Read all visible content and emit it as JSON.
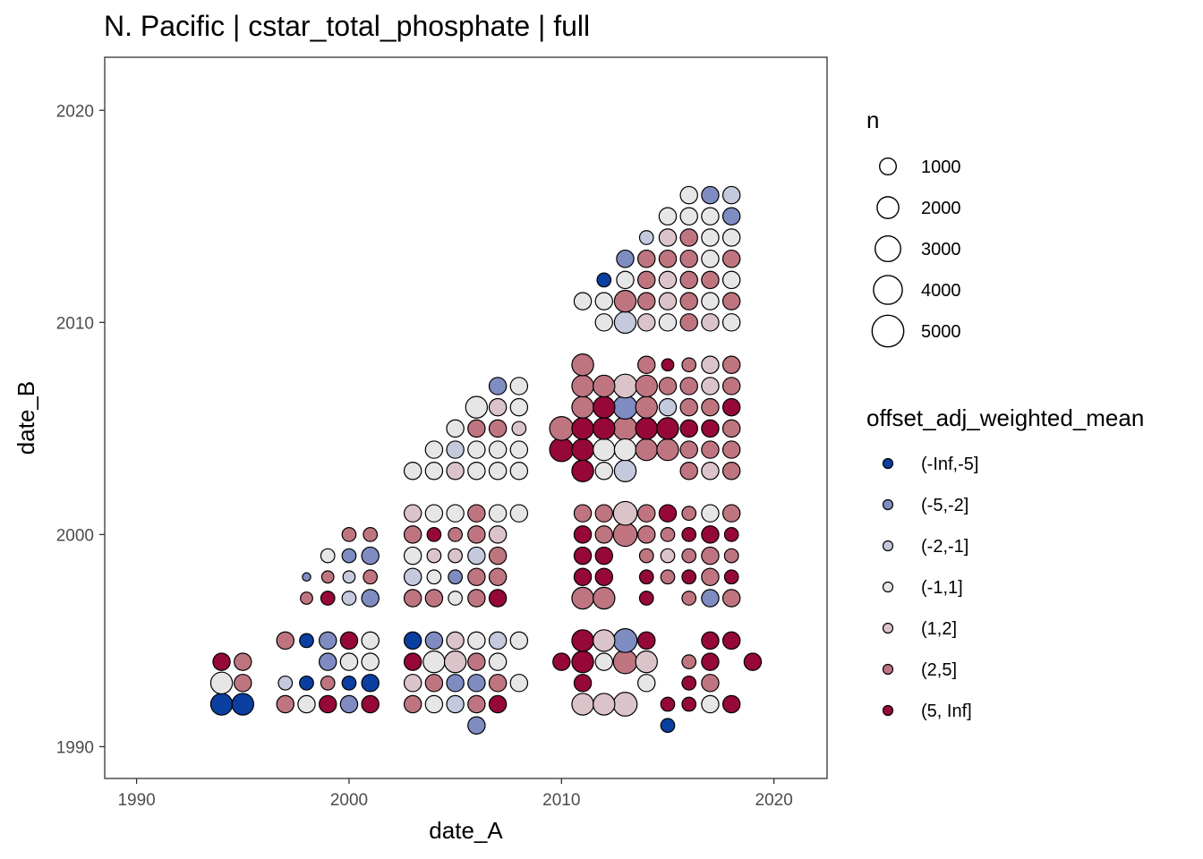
{
  "chart_data": {
    "type": "scatter",
    "title": "N. Pacific | cstar_total_phosphate | full",
    "xlabel": "date_A",
    "ylabel": "date_B",
    "xlim": [
      1988.5,
      2022.5
    ],
    "ylim": [
      1988.5,
      2022.5
    ],
    "xticks": [
      1990,
      2000,
      2010,
      2020
    ],
    "yticks": [
      1990,
      2000,
      2010,
      2020
    ],
    "grid": false,
    "size_legend": {
      "title": "n",
      "entries": [
        {
          "label": "1000",
          "value": 1000
        },
        {
          "label": "2000",
          "value": 2000
        },
        {
          "label": "3000",
          "value": 3000
        },
        {
          "label": "4000",
          "value": 4000
        },
        {
          "label": "5000",
          "value": 5000
        }
      ]
    },
    "color_legend": {
      "title": "offset_adj_weighted_mean",
      "entries": [
        {
          "label": "(-Inf,-5]",
          "color": "#0a3ea0"
        },
        {
          "label": "(-5,-2]",
          "color": "#7f8cc2"
        },
        {
          "label": "(-2,-1]",
          "color": "#c5c9de"
        },
        {
          "label": "(-1,1]",
          "color": "#e6e6e6"
        },
        {
          "label": "(1,2]",
          "color": "#dbc3ca"
        },
        {
          "label": "(2,5]",
          "color": "#bf7580"
        },
        {
          "label": "(5, Inf]",
          "color": "#950838"
        }
      ]
    },
    "points": [
      [
        1994,
        1992,
        0,
        2000
      ],
      [
        1994,
        1993,
        3,
        2000
      ],
      [
        1994,
        1994,
        6,
        1100
      ],
      [
        1995,
        1992,
        0,
        2000
      ],
      [
        1995,
        1993,
        5,
        1100
      ],
      [
        1995,
        1994,
        5,
        1100
      ],
      [
        1997,
        1992,
        5,
        1100
      ],
      [
        1997,
        1993,
        2,
        600
      ],
      [
        1997,
        1995,
        5,
        1100
      ],
      [
        1998,
        1992,
        3,
        1100
      ],
      [
        1998,
        1993,
        0,
        600
      ],
      [
        1998,
        1995,
        0,
        600
      ],
      [
        1998,
        1997,
        5,
        400
      ],
      [
        1998,
        1998,
        1,
        100
      ],
      [
        1999,
        1992,
        6,
        1100
      ],
      [
        1999,
        1993,
        5,
        600
      ],
      [
        1999,
        1994,
        1,
        1100
      ],
      [
        1999,
        1995,
        1,
        1100
      ],
      [
        1999,
        1997,
        6,
        600
      ],
      [
        1999,
        1998,
        5,
        400
      ],
      [
        1999,
        1999,
        3,
        600
      ],
      [
        2000,
        1992,
        1,
        1100
      ],
      [
        2000,
        1993,
        0,
        600
      ],
      [
        2000,
        1994,
        3,
        1100
      ],
      [
        2000,
        1995,
        6,
        1100
      ],
      [
        2000,
        1997,
        2,
        600
      ],
      [
        2000,
        1998,
        2,
        400
      ],
      [
        2000,
        1999,
        1,
        600
      ],
      [
        2000,
        2000,
        5,
        600
      ],
      [
        2001,
        1992,
        6,
        1100
      ],
      [
        2001,
        1993,
        0,
        1100
      ],
      [
        2001,
        1994,
        3,
        1100
      ],
      [
        2001,
        1995,
        3,
        1100
      ],
      [
        2001,
        1997,
        1,
        1100
      ],
      [
        2001,
        1998,
        5,
        600
      ],
      [
        2001,
        1999,
        1,
        1100
      ],
      [
        2001,
        2000,
        5,
        600
      ],
      [
        2003,
        1992,
        5,
        1100
      ],
      [
        2003,
        1993,
        4,
        1100
      ],
      [
        2003,
        1994,
        6,
        1100
      ],
      [
        2003,
        1995,
        0,
        1100
      ],
      [
        2003,
        1997,
        5,
        1100
      ],
      [
        2003,
        1998,
        2,
        1100
      ],
      [
        2003,
        1999,
        3,
        1100
      ],
      [
        2003,
        2000,
        5,
        1100
      ],
      [
        2003,
        2001,
        4,
        1100
      ],
      [
        2003,
        2003,
        3,
        1100
      ],
      [
        2004,
        1992,
        3,
        1100
      ],
      [
        2004,
        1993,
        5,
        1100
      ],
      [
        2004,
        1994,
        3,
        2000
      ],
      [
        2004,
        1995,
        1,
        1100
      ],
      [
        2004,
        1997,
        5,
        1100
      ],
      [
        2004,
        1998,
        3,
        600
      ],
      [
        2004,
        1999,
        4,
        600
      ],
      [
        2004,
        2000,
        6,
        600
      ],
      [
        2004,
        2001,
        3,
        1100
      ],
      [
        2004,
        2003,
        3,
        1100
      ],
      [
        2004,
        2004,
        3,
        1100
      ],
      [
        2005,
        1992,
        2,
        1100
      ],
      [
        2005,
        1993,
        1,
        1100
      ],
      [
        2005,
        1994,
        4,
        2000
      ],
      [
        2005,
        1995,
        4,
        1100
      ],
      [
        2005,
        1997,
        3,
        600
      ],
      [
        2005,
        1998,
        1,
        600
      ],
      [
        2005,
        1999,
        4,
        600
      ],
      [
        2005,
        2000,
        5,
        600
      ],
      [
        2005,
        2001,
        3,
        1100
      ],
      [
        2005,
        2003,
        4,
        1100
      ],
      [
        2005,
        2004,
        2,
        1100
      ],
      [
        2005,
        2005,
        3,
        1100
      ],
      [
        2006,
        1991,
        1,
        1100
      ],
      [
        2006,
        1992,
        5,
        1100
      ],
      [
        2006,
        1993,
        1,
        1100
      ],
      [
        2006,
        1994,
        5,
        1100
      ],
      [
        2006,
        1995,
        3,
        1100
      ],
      [
        2006,
        1997,
        5,
        1100
      ],
      [
        2006,
        1998,
        5,
        1100
      ],
      [
        2006,
        1999,
        2,
        1100
      ],
      [
        2006,
        2000,
        5,
        1100
      ],
      [
        2006,
        2001,
        5,
        1100
      ],
      [
        2006,
        2003,
        3,
        1100
      ],
      [
        2006,
        2004,
        3,
        1100
      ],
      [
        2006,
        2005,
        5,
        1100
      ],
      [
        2006,
        2006,
        3,
        2000
      ],
      [
        2007,
        1992,
        6,
        1100
      ],
      [
        2007,
        1993,
        5,
        1100
      ],
      [
        2007,
        1994,
        3,
        1100
      ],
      [
        2007,
        1995,
        2,
        1100
      ],
      [
        2007,
        1997,
        6,
        1100
      ],
      [
        2007,
        1998,
        5,
        1100
      ],
      [
        2007,
        1999,
        5,
        1100
      ],
      [
        2007,
        2000,
        4,
        1100
      ],
      [
        2007,
        2001,
        3,
        1100
      ],
      [
        2007,
        2003,
        3,
        1100
      ],
      [
        2007,
        2004,
        3,
        1100
      ],
      [
        2007,
        2005,
        5,
        1100
      ],
      [
        2007,
        2006,
        4,
        1100
      ],
      [
        2007,
        2007,
        1,
        1100
      ],
      [
        2008,
        1993,
        3,
        1100
      ],
      [
        2008,
        1995,
        3,
        1100
      ],
      [
        2008,
        2001,
        3,
        1100
      ],
      [
        2008,
        2003,
        3,
        1100
      ],
      [
        2008,
        2004,
        3,
        1100
      ],
      [
        2008,
        2005,
        4,
        600
      ],
      [
        2008,
        2006,
        3,
        1100
      ],
      [
        2008,
        2007,
        3,
        1100
      ],
      [
        2010,
        1994,
        6,
        1100
      ],
      [
        2010,
        2004,
        6,
        2500
      ],
      [
        2010,
        2005,
        5,
        2500
      ],
      [
        2011,
        1992,
        4,
        2000
      ],
      [
        2011,
        1993,
        6,
        1100
      ],
      [
        2011,
        1994,
        6,
        2000
      ],
      [
        2011,
        1995,
        6,
        2000
      ],
      [
        2011,
        1997,
        5,
        2000
      ],
      [
        2011,
        1998,
        6,
        1100
      ],
      [
        2011,
        1999,
        6,
        1100
      ],
      [
        2011,
        2000,
        6,
        1100
      ],
      [
        2011,
        2001,
        5,
        1100
      ],
      [
        2011,
        2003,
        6,
        2000
      ],
      [
        2011,
        2004,
        6,
        2000
      ],
      [
        2011,
        2005,
        6,
        2000
      ],
      [
        2011,
        2006,
        5,
        2000
      ],
      [
        2011,
        2007,
        5,
        2000
      ],
      [
        2011,
        2008,
        5,
        2000
      ],
      [
        2011,
        2011,
        3,
        1100
      ],
      [
        2012,
        1992,
        4,
        2000
      ],
      [
        2012,
        1994,
        3,
        1100
      ],
      [
        2012,
        1995,
        4,
        2000
      ],
      [
        2012,
        1997,
        5,
        2000
      ],
      [
        2012,
        1998,
        6,
        1100
      ],
      [
        2012,
        1999,
        6,
        1100
      ],
      [
        2012,
        2000,
        5,
        1100
      ],
      [
        2012,
        2001,
        5,
        1100
      ],
      [
        2012,
        2003,
        3,
        1100
      ],
      [
        2012,
        2004,
        3,
        2000
      ],
      [
        2012,
        2005,
        6,
        2000
      ],
      [
        2012,
        2006,
        6,
        2000
      ],
      [
        2012,
        2007,
        5,
        2000
      ],
      [
        2012,
        2010,
        3,
        1100
      ],
      [
        2012,
        2011,
        3,
        1100
      ],
      [
        2012,
        2012,
        0,
        600
      ],
      [
        2013,
        1992,
        4,
        2500
      ],
      [
        2013,
        1994,
        5,
        2500
      ],
      [
        2013,
        1995,
        1,
        2500
      ],
      [
        2013,
        2000,
        5,
        2500
      ],
      [
        2013,
        2001,
        4,
        2500
      ],
      [
        2013,
        2003,
        2,
        2000
      ],
      [
        2013,
        2004,
        3,
        2000
      ],
      [
        2013,
        2005,
        5,
        2500
      ],
      [
        2013,
        2006,
        1,
        2500
      ],
      [
        2013,
        2007,
        4,
        2500
      ],
      [
        2013,
        2010,
        2,
        2000
      ],
      [
        2013,
        2011,
        5,
        2000
      ],
      [
        2013,
        2012,
        3,
        1100
      ],
      [
        2013,
        2013,
        1,
        1100
      ],
      [
        2014,
        1993,
        3,
        1100
      ],
      [
        2014,
        1994,
        4,
        2000
      ],
      [
        2014,
        1995,
        6,
        1100
      ],
      [
        2014,
        1997,
        6,
        600
      ],
      [
        2014,
        1998,
        6,
        600
      ],
      [
        2014,
        1999,
        5,
        600
      ],
      [
        2014,
        2000,
        5,
        1100
      ],
      [
        2014,
        2001,
        5,
        1100
      ],
      [
        2014,
        2004,
        5,
        2000
      ],
      [
        2014,
        2005,
        6,
        2000
      ],
      [
        2014,
        2006,
        5,
        2000
      ],
      [
        2014,
        2007,
        5,
        2000
      ],
      [
        2014,
        2008,
        5,
        1100
      ],
      [
        2014,
        2010,
        4,
        1100
      ],
      [
        2014,
        2011,
        5,
        1100
      ],
      [
        2014,
        2012,
        5,
        1100
      ],
      [
        2014,
        2013,
        5,
        1100
      ],
      [
        2014,
        2014,
        2,
        600
      ],
      [
        2015,
        1991,
        0,
        600
      ],
      [
        2015,
        1992,
        6,
        600
      ],
      [
        2015,
        1998,
        5,
        600
      ],
      [
        2015,
        1999,
        4,
        600
      ],
      [
        2015,
        2000,
        5,
        600
      ],
      [
        2015,
        2001,
        6,
        1100
      ],
      [
        2015,
        2004,
        5,
        2000
      ],
      [
        2015,
        2005,
        6,
        2000
      ],
      [
        2015,
        2006,
        2,
        1100
      ],
      [
        2015,
        2007,
        5,
        1100
      ],
      [
        2015,
        2008,
        6,
        400
      ],
      [
        2015,
        2010,
        3,
        1100
      ],
      [
        2015,
        2011,
        4,
        1100
      ],
      [
        2015,
        2012,
        4,
        1100
      ],
      [
        2015,
        2013,
        5,
        1100
      ],
      [
        2015,
        2014,
        4,
        1100
      ],
      [
        2015,
        2015,
        3,
        1100
      ],
      [
        2016,
        1992,
        6,
        600
      ],
      [
        2016,
        1993,
        6,
        600
      ],
      [
        2016,
        1994,
        5,
        600
      ],
      [
        2016,
        1997,
        5,
        600
      ],
      [
        2016,
        1998,
        6,
        600
      ],
      [
        2016,
        1999,
        5,
        600
      ],
      [
        2016,
        2000,
        6,
        600
      ],
      [
        2016,
        2001,
        5,
        600
      ],
      [
        2016,
        2003,
        5,
        1100
      ],
      [
        2016,
        2004,
        5,
        1100
      ],
      [
        2016,
        2005,
        6,
        1100
      ],
      [
        2016,
        2006,
        5,
        1100
      ],
      [
        2016,
        2007,
        5,
        1100
      ],
      [
        2016,
        2008,
        5,
        600
      ],
      [
        2016,
        2010,
        5,
        1100
      ],
      [
        2016,
        2011,
        5,
        1100
      ],
      [
        2016,
        2012,
        5,
        1100
      ],
      [
        2016,
        2013,
        5,
        1100
      ],
      [
        2016,
        2014,
        5,
        1100
      ],
      [
        2016,
        2015,
        3,
        1100
      ],
      [
        2016,
        2016,
        3,
        1100
      ],
      [
        2017,
        1992,
        3,
        1100
      ],
      [
        2017,
        1993,
        5,
        1100
      ],
      [
        2017,
        1994,
        6,
        1100
      ],
      [
        2017,
        1995,
        6,
        1100
      ],
      [
        2017,
        1997,
        1,
        1100
      ],
      [
        2017,
        1998,
        5,
        1100
      ],
      [
        2017,
        1999,
        5,
        1100
      ],
      [
        2017,
        2000,
        6,
        1100
      ],
      [
        2017,
        2001,
        3,
        1100
      ],
      [
        2017,
        2003,
        4,
        1100
      ],
      [
        2017,
        2004,
        5,
        1100
      ],
      [
        2017,
        2005,
        6,
        1100
      ],
      [
        2017,
        2006,
        5,
        1100
      ],
      [
        2017,
        2007,
        4,
        1100
      ],
      [
        2017,
        2008,
        4,
        1100
      ],
      [
        2017,
        2010,
        4,
        1100
      ],
      [
        2017,
        2011,
        3,
        1100
      ],
      [
        2017,
        2012,
        5,
        1100
      ],
      [
        2017,
        2013,
        3,
        1100
      ],
      [
        2017,
        2014,
        3,
        1100
      ],
      [
        2017,
        2015,
        3,
        1100
      ],
      [
        2017,
        2016,
        1,
        1100
      ],
      [
        2018,
        1992,
        6,
        1100
      ],
      [
        2018,
        1995,
        6,
        1100
      ],
      [
        2018,
        1997,
        5,
        1100
      ],
      [
        2018,
        1998,
        6,
        600
      ],
      [
        2018,
        1999,
        5,
        600
      ],
      [
        2018,
        2000,
        6,
        600
      ],
      [
        2018,
        2001,
        5,
        1100
      ],
      [
        2018,
        2003,
        5,
        1100
      ],
      [
        2018,
        2004,
        5,
        1100
      ],
      [
        2018,
        2005,
        5,
        1100
      ],
      [
        2018,
        2006,
        6,
        1100
      ],
      [
        2018,
        2007,
        5,
        1100
      ],
      [
        2018,
        2008,
        5,
        1100
      ],
      [
        2018,
        2010,
        3,
        1100
      ],
      [
        2018,
        2011,
        5,
        1100
      ],
      [
        2018,
        2012,
        3,
        1100
      ],
      [
        2018,
        2013,
        5,
        1100
      ],
      [
        2018,
        2014,
        3,
        1100
      ],
      [
        2018,
        2015,
        1,
        1100
      ],
      [
        2018,
        2016,
        2,
        1100
      ],
      [
        2019,
        1994,
        6,
        1100
      ]
    ]
  }
}
